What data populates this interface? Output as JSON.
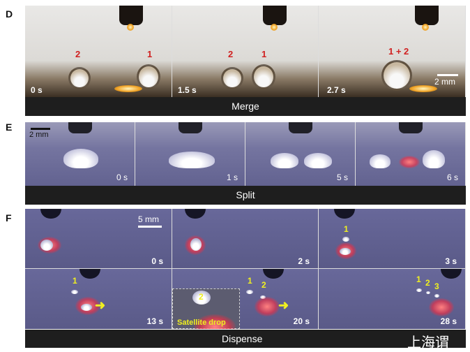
{
  "panels": {
    "D": {
      "label": "D",
      "caption": "Merge",
      "times": [
        "0 s",
        "1.5 s",
        "2.7 s"
      ],
      "drop_labels": {
        "frame1": [
          "2",
          "1"
        ],
        "frame2": [
          "2",
          "1"
        ],
        "frame3": [
          "1 + 2"
        ]
      },
      "scale": "2 mm"
    },
    "E": {
      "label": "E",
      "caption": "Split",
      "times": [
        "0 s",
        "1 s",
        "5 s",
        "6 s"
      ],
      "scale": "2 mm"
    },
    "F": {
      "label": "F",
      "caption": "Dispense",
      "times": [
        "0 s",
        "2 s",
        "3 s",
        "13 s",
        "20 s",
        "28 s"
      ],
      "scale": "5 mm",
      "drop_labels": {
        "frame3": [
          "1"
        ],
        "frame4": [
          "1"
        ],
        "frame5": [
          "1",
          "2"
        ],
        "frame6": [
          "1",
          "2",
          "3"
        ],
        "inset": "Satellite drop",
        "inset_number": "2"
      }
    }
  },
  "watermark": "上海谓"
}
